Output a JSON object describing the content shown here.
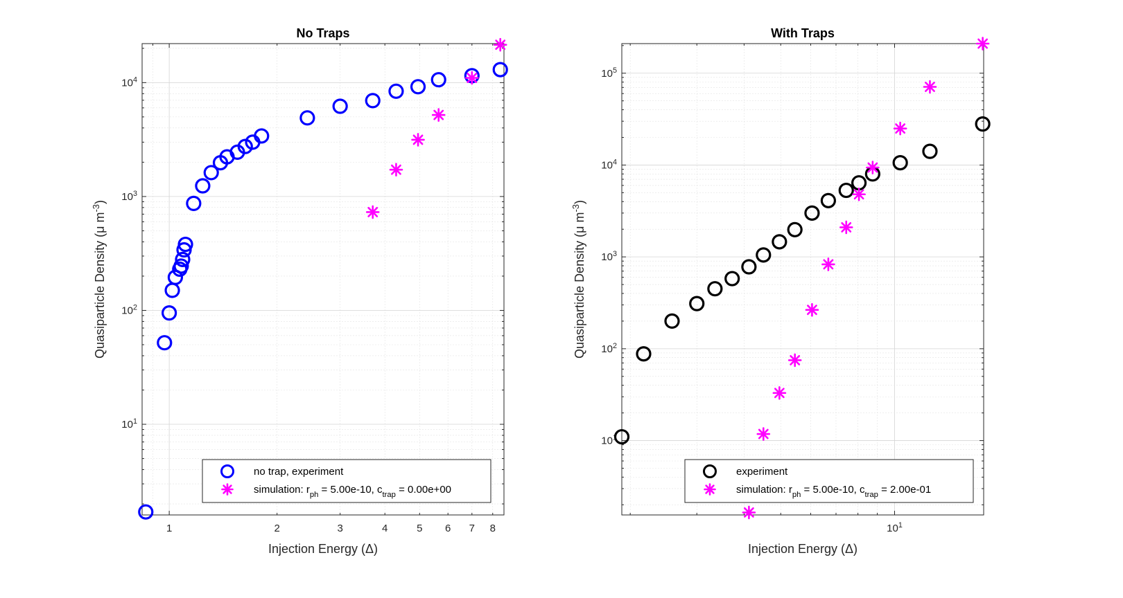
{
  "chart_data": [
    {
      "type": "scatter",
      "title": "No Traps",
      "xlabel": "Injection Energy (Δ)",
      "ylabel": "Quasiparticle Density (μ m⁻³)",
      "xscale": "log",
      "yscale": "log",
      "xlim": [
        0.84,
        8.6
      ],
      "ylim": [
        1.6,
        22000
      ],
      "grid": true,
      "legend_position": "bottom-right",
      "xticks": [
        1,
        2,
        3,
        4,
        5,
        6,
        7,
        8
      ],
      "xticklabels": [
        "1",
        "2",
        "3",
        "4",
        "5",
        "6",
        "7",
        "8"
      ],
      "yticks": [
        10,
        100,
        1000,
        10000
      ],
      "yticklabels": [
        "10¹",
        "10²",
        "10³",
        "10⁴"
      ],
      "series": [
        {
          "name": "no trap, experiment",
          "marker": "circle",
          "color": "#0000ff",
          "x": [
            0.86,
            0.97,
            1.0,
            1.02,
            1.04,
            1.07,
            1.08,
            1.09,
            1.1,
            1.11,
            1.17,
            1.24,
            1.31,
            1.39,
            1.45,
            1.55,
            1.63,
            1.71,
            1.81,
            2.43,
            3.0,
            3.7,
            4.3,
            4.95,
            5.65,
            7.0,
            8.4
          ],
          "y": [
            1.7,
            52,
            95,
            150,
            195,
            230,
            245,
            280,
            340,
            380,
            870,
            1240,
            1620,
            1980,
            2230,
            2450,
            2750,
            3000,
            3400,
            4900,
            6200,
            6950,
            8400,
            9200,
            10600,
            11500,
            13000
          ]
        },
        {
          "name": "simulation: r_ph = 5.00e-10, c_trap = 0.00e+00",
          "marker": "asterisk",
          "color": "#ff00ff",
          "x": [
            3.7,
            4.3,
            4.95,
            5.65,
            7.0,
            8.4
          ],
          "y": [
            730,
            1720,
            3150,
            5200,
            11000,
            21500
          ]
        }
      ]
    },
    {
      "type": "scatter",
      "title": "With Traps",
      "xlabel": "Injection Energy (Δ)",
      "ylabel": "Quasiparticle Density (μ m⁻³)",
      "xscale": "log",
      "yscale": "log",
      "xlim": [
        1.9,
        17.2
      ],
      "ylim": [
        1.55,
        210000
      ],
      "grid": true,
      "legend_position": "bottom-right",
      "xticks": [
        10
      ],
      "xticklabels": [
        "10¹"
      ],
      "yticks": [
        10,
        100,
        1000,
        10000,
        100000
      ],
      "yticklabels": [
        "10¹",
        "10²",
        "10³",
        "10⁴",
        "10⁵"
      ],
      "series": [
        {
          "name": "experiment",
          "marker": "circle",
          "color": "#000000",
          "x": [
            1.9,
            2.17,
            2.58,
            3.0,
            3.35,
            3.72,
            4.12,
            4.5,
            4.96,
            5.45,
            6.05,
            6.68,
            7.45,
            8.05,
            8.75,
            10.35,
            12.4,
            17.1
          ],
          "y": [
            11,
            88,
            200,
            310,
            450,
            580,
            780,
            1050,
            1460,
            1980,
            3000,
            4100,
            5300,
            6400,
            8000,
            10600,
            14100,
            28000
          ]
        },
        {
          "name": "simulation: r_ph = 5.00e-10, c_trap = 2.00e-01",
          "marker": "asterisk",
          "color": "#ff00ff",
          "x": [
            4.12,
            4.5,
            4.96,
            5.45,
            6.05,
            6.68,
            7.45,
            8.05,
            8.75,
            10.35,
            12.4,
            17.1
          ],
          "y": [
            1.65,
            11.8,
            33,
            75,
            265,
            830,
            2100,
            4800,
            9400,
            25000,
            71000,
            210000
          ]
        }
      ]
    }
  ],
  "legends": [
    {
      "items": [
        {
          "marker": "circle",
          "color": "#0000ff",
          "text": "no trap, experiment"
        },
        {
          "marker": "asterisk",
          "color": "#ff00ff",
          "text": "simulation: r_ph = 5.00e-10, c_trap = 0.00e+00"
        }
      ]
    },
    {
      "items": [
        {
          "marker": "circle",
          "color": "#000000",
          "text": "experiment"
        },
        {
          "marker": "asterisk",
          "color": "#ff00ff",
          "text": "simulation: r_ph = 5.00e-10, c_trap = 2.00e-01"
        }
      ]
    }
  ]
}
